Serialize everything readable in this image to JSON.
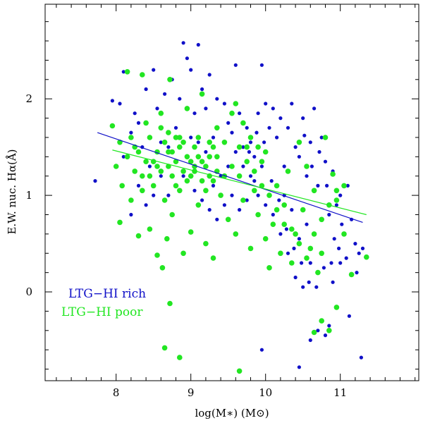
{
  "chart_data": {
    "type": "scatter",
    "xlabel": "log(M∗) (M⊙)",
    "ylabel": "E.W. nuc. Hα(Å)",
    "xlim": [
      7.05,
      12.05
    ],
    "ylim": [
      -0.92,
      2.98
    ],
    "x_ticks": [
      8,
      9,
      10,
      11
    ],
    "x_tick_labels": [
      "8",
      "9",
      "10",
      "11"
    ],
    "x_minor_step": 0.2,
    "y_ticks": [
      0,
      1,
      2
    ],
    "y_tick_labels": [
      "0",
      "1",
      "2"
    ],
    "y_minor_step": 0.2,
    "grid": false,
    "legend_position": "lower-left",
    "series": [
      {
        "name": "LTG−HI rich",
        "color": "#1010c8",
        "marker": "small-dot",
        "approx_count": 420,
        "fit_line": {
          "x": [
            7.75,
            11.3
          ],
          "y": [
            1.65,
            0.72
          ]
        },
        "points": [
          [
            7.72,
            1.15
          ],
          [
            7.95,
            1.98
          ],
          [
            8.05,
            1.95
          ],
          [
            8.1,
            2.28
          ],
          [
            8.2,
            1.65
          ],
          [
            8.25,
            1.85
          ],
          [
            8.3,
            1.75
          ],
          [
            8.35,
            1.5
          ],
          [
            8.4,
            2.1
          ],
          [
            8.45,
            1.3
          ],
          [
            8.5,
            2.3
          ],
          [
            8.55,
            1.9
          ],
          [
            8.6,
            1.55
          ],
          [
            8.65,
            2.05
          ],
          [
            8.7,
            1.0
          ],
          [
            8.75,
            2.2
          ],
          [
            8.8,
            1.7
          ],
          [
            8.85,
            2.0
          ],
          [
            8.9,
            2.58
          ],
          [
            8.95,
            2.42
          ],
          [
            9.0,
            2.3
          ],
          [
            9.05,
            1.85
          ],
          [
            9.1,
            2.56
          ],
          [
            9.15,
            2.1
          ],
          [
            9.2,
            1.9
          ],
          [
            9.25,
            2.25
          ],
          [
            9.3,
            1.6
          ],
          [
            9.35,
            2.0
          ],
          [
            9.45,
            1.95
          ],
          [
            9.5,
            1.75
          ],
          [
            9.55,
            1.65
          ],
          [
            9.6,
            2.35
          ],
          [
            9.65,
            1.85
          ],
          [
            9.7,
            1.5
          ],
          [
            9.75,
            1.7
          ],
          [
            9.8,
            1.55
          ],
          [
            9.85,
            1.4
          ],
          [
            9.9,
            1.85
          ],
          [
            9.95,
            2.35
          ],
          [
            10.0,
            1.95
          ],
          [
            10.05,
            1.7
          ],
          [
            10.1,
            1.9
          ],
          [
            10.15,
            1.6
          ],
          [
            10.2,
            1.8
          ],
          [
            10.25,
            1.3
          ],
          [
            10.3,
            1.7
          ],
          [
            10.35,
            1.95
          ],
          [
            10.4,
            1.5
          ],
          [
            10.45,
            1.4
          ],
          [
            10.5,
            1.8
          ],
          [
            10.55,
            1.2
          ],
          [
            10.6,
            1.55
          ],
          [
            10.65,
            1.9
          ],
          [
            10.7,
            1.1
          ],
          [
            10.75,
            1.6
          ],
          [
            10.8,
            1.35
          ],
          [
            10.85,
            0.8
          ],
          [
            10.9,
            1.25
          ],
          [
            10.95,
            0.9
          ],
          [
            11.0,
            1.0
          ],
          [
            11.05,
            0.6
          ],
          [
            11.1,
            1.1
          ],
          [
            11.15,
            0.75
          ],
          [
            11.2,
            0.5
          ],
          [
            11.25,
            0.4
          ],
          [
            11.3,
            0.45
          ],
          [
            11.22,
            0.2
          ],
          [
            11.12,
            -0.25
          ],
          [
            11.28,
            -0.68
          ],
          [
            10.45,
            -0.78
          ],
          [
            9.95,
            -0.6
          ],
          [
            10.6,
            -0.5
          ],
          [
            10.7,
            -0.4
          ],
          [
            10.8,
            -0.45
          ],
          [
            10.85,
            -0.35
          ],
          [
            10.5,
            0.05
          ],
          [
            10.4,
            0.15
          ],
          [
            10.3,
            0.4
          ],
          [
            10.2,
            0.6
          ],
          [
            10.1,
            0.8
          ],
          [
            10.0,
            0.9
          ],
          [
            9.9,
            1.0
          ],
          [
            9.8,
            1.2
          ],
          [
            9.7,
            1.3
          ],
          [
            9.6,
            1.45
          ],
          [
            9.5,
            1.3
          ],
          [
            9.4,
            1.2
          ],
          [
            9.3,
            1.1
          ],
          [
            9.2,
            1.45
          ],
          [
            9.1,
            1.55
          ],
          [
            9.0,
            1.6
          ],
          [
            8.9,
            1.2
          ],
          [
            8.8,
            1.35
          ],
          [
            8.7,
            1.5
          ],
          [
            8.6,
            1.2
          ],
          [
            8.5,
            1.0
          ],
          [
            8.4,
            0.9
          ],
          [
            8.3,
            1.1
          ],
          [
            8.2,
            0.8
          ],
          [
            8.1,
            1.4
          ],
          [
            10.6,
            0.3
          ],
          [
            10.7,
            0.2
          ],
          [
            10.9,
            0.1
          ],
          [
            11.0,
            0.3
          ],
          [
            10.45,
            0.55
          ],
          [
            10.55,
            0.7
          ],
          [
            10.65,
            0.6
          ],
          [
            10.75,
            0.75
          ],
          [
            10.35,
            0.85
          ],
          [
            10.25,
            1.0
          ],
          [
            9.95,
            1.3
          ],
          [
            9.85,
            1.15
          ],
          [
            9.75,
            0.95
          ],
          [
            9.65,
            0.85
          ],
          [
            9.55,
            1.0
          ],
          [
            9.45,
            0.9
          ],
          [
            9.35,
            0.75
          ],
          [
            9.25,
            0.85
          ],
          [
            9.15,
            0.95
          ],
          [
            9.05,
            1.05
          ],
          [
            10.52,
            1.62
          ],
          [
            10.62,
            1.3
          ],
          [
            10.72,
            1.45
          ],
          [
            10.82,
            1.1
          ],
          [
            10.92,
            0.55
          ],
          [
            11.02,
            0.7
          ],
          [
            11.08,
            0.35
          ],
          [
            10.98,
            0.45
          ],
          [
            10.88,
            0.3
          ],
          [
            10.78,
            0.25
          ],
          [
            10.68,
            0.05
          ],
          [
            10.58,
            0.1
          ],
          [
            10.48,
            0.3
          ],
          [
            10.38,
            0.45
          ],
          [
            10.28,
            0.65
          ],
          [
            10.18,
            0.95
          ],
          [
            10.08,
            1.15
          ],
          [
            9.98,
            1.55
          ],
          [
            9.88,
            1.65
          ],
          [
            9.78,
            1.45
          ]
        ]
      },
      {
        "name": "LTG−HI poor",
        "color": "#22e622",
        "marker": "large-dot",
        "approx_count": 560,
        "fit_line": {
          "x": [
            7.95,
            11.35
          ],
          "y": [
            1.47,
            0.8
          ]
        },
        "points": [
          [
            7.95,
            1.72
          ],
          [
            8.0,
            1.3
          ],
          [
            8.05,
            0.72
          ],
          [
            8.08,
            1.1
          ],
          [
            8.15,
            2.28
          ],
          [
            8.2,
            0.95
          ],
          [
            8.25,
            1.5
          ],
          [
            8.3,
            0.58
          ],
          [
            8.35,
            1.2
          ],
          [
            8.4,
            1.75
          ],
          [
            8.45,
            0.65
          ],
          [
            8.5,
            1.35
          ],
          [
            8.55,
            0.38
          ],
          [
            8.6,
            1.85
          ],
          [
            8.62,
            0.25
          ],
          [
            8.65,
            0.95
          ],
          [
            8.68,
            0.55
          ],
          [
            8.7,
            1.45
          ],
          [
            8.72,
            2.2
          ],
          [
            8.75,
            0.8
          ],
          [
            8.8,
            1.6
          ],
          [
            8.85,
            1.05
          ],
          [
            8.9,
            0.4
          ],
          [
            8.95,
            1.9
          ],
          [
            9.0,
            0.62
          ],
          [
            9.05,
            1.25
          ],
          [
            9.1,
            0.9
          ],
          [
            9.15,
            2.05
          ],
          [
            9.2,
            0.5
          ],
          [
            9.25,
            1.4
          ],
          [
            9.3,
            0.35
          ],
          [
            9.35,
            1.7
          ],
          [
            9.4,
            1.0
          ],
          [
            9.45,
            1.55
          ],
          [
            9.5,
            0.75
          ],
          [
            9.55,
            1.85
          ],
          [
            9.6,
            0.6
          ],
          [
            9.65,
            1.2
          ],
          [
            9.7,
            0.95
          ],
          [
            9.75,
            1.5
          ],
          [
            9.8,
            0.45
          ],
          [
            9.85,
            1.05
          ],
          [
            9.9,
            0.8
          ],
          [
            9.95,
            1.35
          ],
          [
            10.0,
            0.55
          ],
          [
            10.05,
            0.25
          ],
          [
            10.1,
            0.7
          ],
          [
            10.15,
            1.1
          ],
          [
            10.2,
            0.4
          ],
          [
            10.25,
            0.9
          ],
          [
            10.3,
            1.25
          ],
          [
            10.35,
            0.3
          ],
          [
            10.4,
            0.6
          ],
          [
            10.45,
            1.55
          ],
          [
            10.5,
            0.85
          ],
          [
            10.55,
            1.3
          ],
          [
            10.6,
            0.45
          ],
          [
            10.65,
            1.05
          ],
          [
            10.7,
            0.2
          ],
          [
            10.75,
            0.75
          ],
          [
            10.8,
            1.6
          ],
          [
            10.9,
            1.22
          ],
          [
            10.95,
            0.95
          ],
          [
            11.05,
            0.6
          ],
          [
            11.15,
            0.18
          ],
          [
            11.35,
            0.36
          ],
          [
            8.65,
            -0.58
          ],
          [
            8.85,
            -0.68
          ],
          [
            9.65,
            -0.82
          ],
          [
            10.65,
            -0.42
          ],
          [
            10.75,
            -0.3
          ],
          [
            10.85,
            -0.4
          ],
          [
            10.95,
            -0.16
          ],
          [
            8.72,
            -0.12
          ],
          [
            8.35,
            2.25
          ],
          [
            8.45,
            1.6
          ],
          [
            8.55,
            1.3
          ],
          [
            8.75,
            1.2
          ],
          [
            8.85,
            1.5
          ],
          [
            8.95,
            1.4
          ],
          [
            9.05,
            1.3
          ],
          [
            9.15,
            1.35
          ],
          [
            9.25,
            1.2
          ],
          [
            9.35,
            1.25
          ],
          [
            8.5,
            1.1
          ],
          [
            8.6,
            1.25
          ],
          [
            8.7,
            1.3
          ],
          [
            8.8,
            1.35
          ],
          [
            8.9,
            1.25
          ],
          [
            9.0,
            1.35
          ],
          [
            9.1,
            1.4
          ],
          [
            9.2,
            1.3
          ],
          [
            9.3,
            1.15
          ],
          [
            8.3,
            1.45
          ],
          [
            8.4,
            1.35
          ],
          [
            8.2,
            1.6
          ],
          [
            8.25,
            1.25
          ],
          [
            8.35,
            1.05
          ],
          [
            8.45,
            1.2
          ],
          [
            8.55,
            1.45
          ],
          [
            8.65,
            1.55
          ],
          [
            8.75,
            1.45
          ],
          [
            8.85,
            1.6
          ],
          [
            8.95,
            1.15
          ],
          [
            9.05,
            1.5
          ],
          [
            9.15,
            1.15
          ],
          [
            9.25,
            1.55
          ],
          [
            9.35,
            1.4
          ],
          [
            9.45,
            1.2
          ],
          [
            9.55,
            1.3
          ],
          [
            8.6,
            1.7
          ],
          [
            8.7,
            1.65
          ],
          [
            8.8,
            1.1
          ],
          [
            8.9,
            1.55
          ],
          [
            9.0,
            1.2
          ],
          [
            9.1,
            1.6
          ],
          [
            9.2,
            1.05
          ],
          [
            9.3,
            1.5
          ],
          [
            8.15,
            1.4
          ],
          [
            8.05,
            1.55
          ],
          [
            9.65,
            1.5
          ],
          [
            9.75,
            1.35
          ],
          [
            9.85,
            1.25
          ],
          [
            9.95,
            1.1
          ],
          [
            10.05,
            1.0
          ],
          [
            10.15,
            0.85
          ],
          [
            10.25,
            0.7
          ],
          [
            10.35,
            0.65
          ],
          [
            10.45,
            0.5
          ],
          [
            10.55,
            0.35
          ],
          [
            10.65,
            0.6
          ],
          [
            10.75,
            0.4
          ],
          [
            10.85,
            0.9
          ],
          [
            10.95,
            1.05
          ],
          [
            11.05,
            1.1
          ],
          [
            9.6,
            1.95
          ],
          [
            9.7,
            1.75
          ],
          [
            9.8,
            1.6
          ],
          [
            9.9,
            1.5
          ],
          [
            10.0,
            1.45
          ]
        ]
      }
    ]
  }
}
